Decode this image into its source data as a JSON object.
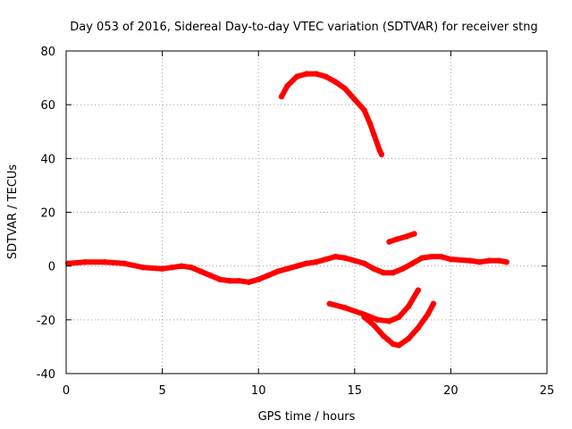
{
  "chart_data": {
    "type": "line",
    "title": "Day 053 of 2016, Sidereal Day-to-day VTEC variation (SDTVAR) for receiver stng",
    "xlabel": "GPS time / hours",
    "ylabel": "SDTVAR / TECUs",
    "xlim": [
      0,
      25
    ],
    "ylim": [
      -40,
      80
    ],
    "xticks": [
      0,
      5,
      10,
      15,
      20,
      25
    ],
    "yticks": [
      -40,
      -20,
      0,
      20,
      40,
      60,
      80
    ],
    "grid": true,
    "series_color": "#ff0000",
    "series": [
      {
        "name": "arc-main",
        "points": [
          [
            0.1,
            1
          ],
          [
            1,
            1.5
          ],
          [
            2,
            1.5
          ],
          [
            3,
            1
          ],
          [
            4,
            -0.5
          ],
          [
            5,
            -1
          ],
          [
            5.5,
            -0.5
          ],
          [
            6,
            0
          ],
          [
            6.5,
            -0.5
          ],
          [
            7,
            -2
          ],
          [
            7.5,
            -3.5
          ],
          [
            8,
            -5
          ],
          [
            8.5,
            -5.5
          ],
          [
            9,
            -5.5
          ],
          [
            9.5,
            -6
          ],
          [
            10,
            -5
          ],
          [
            10.5,
            -3.5
          ],
          [
            11,
            -2
          ],
          [
            11.5,
            -1
          ],
          [
            12,
            0
          ],
          [
            12.5,
            1
          ],
          [
            13,
            1.5
          ],
          [
            13.5,
            2.5
          ],
          [
            14,
            3.5
          ],
          [
            14.5,
            3
          ],
          [
            15,
            2
          ],
          [
            15.5,
            1
          ],
          [
            16,
            -1
          ],
          [
            16.5,
            -2.5
          ],
          [
            17,
            -2.5
          ],
          [
            17.5,
            -1
          ],
          [
            18,
            1
          ],
          [
            18.5,
            3
          ],
          [
            19,
            3.5
          ],
          [
            19.5,
            3.5
          ],
          [
            20,
            2.5
          ],
          [
            21,
            2
          ],
          [
            21.5,
            1.5
          ],
          [
            22,
            2
          ],
          [
            22.5,
            2
          ],
          [
            22.9,
            1.5
          ]
        ]
      },
      {
        "name": "arc-high",
        "points": [
          [
            11.2,
            63
          ],
          [
            11.5,
            67
          ],
          [
            12,
            70.5
          ],
          [
            12.5,
            71.5
          ],
          [
            13,
            71.5
          ],
          [
            13.5,
            70.5
          ],
          [
            14,
            68.5
          ],
          [
            14.5,
            66
          ],
          [
            15,
            62
          ],
          [
            15.5,
            58
          ],
          [
            15.8,
            53
          ],
          [
            16,
            49
          ],
          [
            16.3,
            43
          ],
          [
            16.4,
            41.5
          ]
        ]
      },
      {
        "name": "arc-small",
        "points": [
          [
            16.8,
            9
          ],
          [
            17.2,
            10
          ],
          [
            17.7,
            11
          ],
          [
            18.1,
            12
          ]
        ]
      },
      {
        "name": "arc-neg1",
        "points": [
          [
            13.7,
            -14
          ],
          [
            14.5,
            -15.5
          ],
          [
            15.5,
            -18
          ],
          [
            16.2,
            -20
          ],
          [
            16.8,
            -20.5
          ],
          [
            17.3,
            -19
          ],
          [
            17.8,
            -15
          ],
          [
            18.3,
            -9
          ]
        ]
      },
      {
        "name": "arc-neg2",
        "points": [
          [
            15.5,
            -19
          ],
          [
            16,
            -22
          ],
          [
            16.5,
            -26
          ],
          [
            17,
            -29
          ],
          [
            17.3,
            -29.5
          ],
          [
            17.8,
            -27
          ],
          [
            18.3,
            -23
          ],
          [
            18.8,
            -18
          ],
          [
            19.1,
            -14
          ]
        ]
      }
    ]
  }
}
